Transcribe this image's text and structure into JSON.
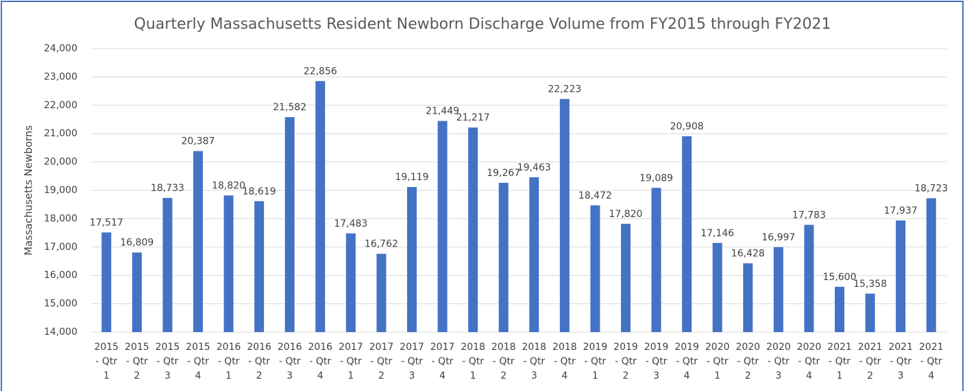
{
  "chart_data": {
    "type": "bar",
    "title": "Quarterly Massachusetts Resident Newborn Discharge Volume from FY2015 through FY2021",
    "y_label": "Massachusetts Newborns",
    "categories": [
      "2015 - Qtr 1",
      "2015 - Qtr 2",
      "2015 - Qtr 3",
      "2015 - Qtr 4",
      "2016 - Qtr 1",
      "2016 - Qtr 2",
      "2016 - Qtr 3",
      "2016 - Qtr 4",
      "2017 - Qtr 1",
      "2017 - Qtr 2",
      "2017 - Qtr 3",
      "2017 - Qtr 4",
      "2018 - Qtr 1",
      "2018 - Qtr 2",
      "2018 - Qtr 3",
      "2018 - Qtr 4",
      "2019 - Qtr 1",
      "2019 - Qtr 2",
      "2019 - Qtr 3",
      "2019 - Qtr 4",
      "2020 - Qtr 1",
      "2020 - Qtr 2",
      "2020 - Qtr 3",
      "2020 - Qtr 4",
      "2021 - Qtr 1",
      "2021 - Qtr 2",
      "2021 - Qtr 3",
      "2021 - Qtr 4"
    ],
    "values": [
      17517,
      16809,
      18733,
      20387,
      18820,
      18619,
      21582,
      22856,
      17483,
      16762,
      19119,
      21449,
      21217,
      19267,
      19463,
      22223,
      18472,
      17820,
      19089,
      20908,
      17146,
      16428,
      16997,
      17783,
      15600,
      15358,
      17937,
      18723
    ],
    "value_labels": [
      "17,517",
      "16,809",
      "18,733",
      "20,387",
      "18,820",
      "18,619",
      "21,582",
      "22,856",
      "17,483",
      "16,762",
      "19,119",
      "21,449",
      "21,217",
      "19,267",
      "19,463",
      "22,223",
      "18,472",
      "17,820",
      "19,089",
      "20,908",
      "17,146",
      "16,428",
      "16,997",
      "17,783",
      "15,600",
      "15,358",
      "17,937",
      "18,723"
    ],
    "color": "#4472c4",
    "ylim": [
      14000,
      24000
    ],
    "yticks": [
      {
        "value": 14000,
        "label": "14,000"
      },
      {
        "value": 15000,
        "label": "15,000"
      },
      {
        "value": 16000,
        "label": "16,000"
      },
      {
        "value": 17000,
        "label": "17,000"
      },
      {
        "value": 18000,
        "label": "18,000"
      },
      {
        "value": 19000,
        "label": "19,000"
      },
      {
        "value": 20000,
        "label": "20,000"
      },
      {
        "value": 21000,
        "label": "21,000"
      },
      {
        "value": 22000,
        "label": "22,000"
      },
      {
        "value": 23000,
        "label": "23,000"
      },
      {
        "value": 24000,
        "label": "24,000"
      }
    ],
    "grid": true
  }
}
